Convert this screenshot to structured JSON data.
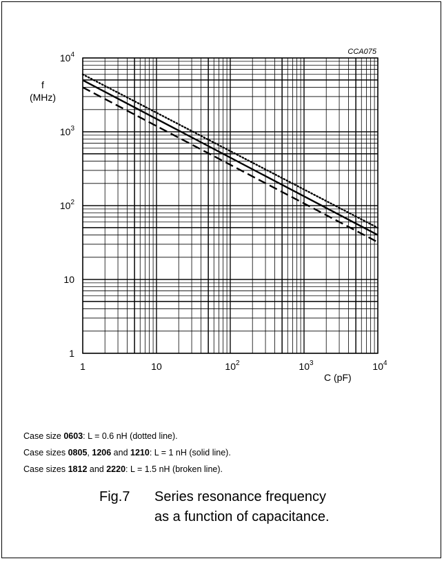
{
  "chart_data": {
    "type": "line",
    "reference_code": "CCA075",
    "title": "",
    "xlabel": "C  (pF)",
    "ylabel_line1": "f",
    "ylabel_line2": "(MHz)",
    "x_scale": "log",
    "y_scale": "log",
    "xlim": [
      1,
      10000
    ],
    "ylim": [
      1,
      10000
    ],
    "grid": true,
    "x_ticks": [
      {
        "base": "1",
        "exp": ""
      },
      {
        "base": "10",
        "exp": ""
      },
      {
        "base": "10",
        "exp": "2"
      },
      {
        "base": "10",
        "exp": "3"
      },
      {
        "base": "10",
        "exp": "4"
      }
    ],
    "y_ticks": [
      {
        "base": "1",
        "exp": ""
      },
      {
        "base": "10",
        "exp": ""
      },
      {
        "base": "10",
        "exp": "2"
      },
      {
        "base": "10",
        "exp": "3"
      },
      {
        "base": "10",
        "exp": "4"
      }
    ],
    "series": [
      {
        "style": "dotted",
        "x": [
          1,
          10000
        ],
        "y": [
          6000,
          50
        ]
      },
      {
        "style": "solid",
        "x": [
          1,
          10000
        ],
        "y": [
          5000,
          40
        ]
      },
      {
        "style": "dashed",
        "x": [
          1,
          10000
        ],
        "y": [
          4000,
          32
        ]
      }
    ]
  },
  "legend": [
    {
      "pre": "Case size ",
      "bold1": "0603",
      "mid1": "",
      "bold2": "",
      "mid2": "",
      "bold3": "",
      "post": ": L = 0.6 nH (dotted line)."
    },
    {
      "pre": "Case sizes ",
      "bold1": "0805",
      "mid1": ", ",
      "bold2": "1206",
      "mid2": " and ",
      "bold3": "1210",
      "post": ": L = 1 nH (solid line)."
    },
    {
      "pre": "Case sizes ",
      "bold1": "1812",
      "mid1": " and ",
      "bold2": "2220",
      "mid2": "",
      "bold3": "",
      "post": ": L = 1.5 nH (broken line)."
    }
  ],
  "caption": {
    "figure": "Fig.7",
    "line1": "Series resonance frequency",
    "line2": "as a function of capacitance."
  }
}
